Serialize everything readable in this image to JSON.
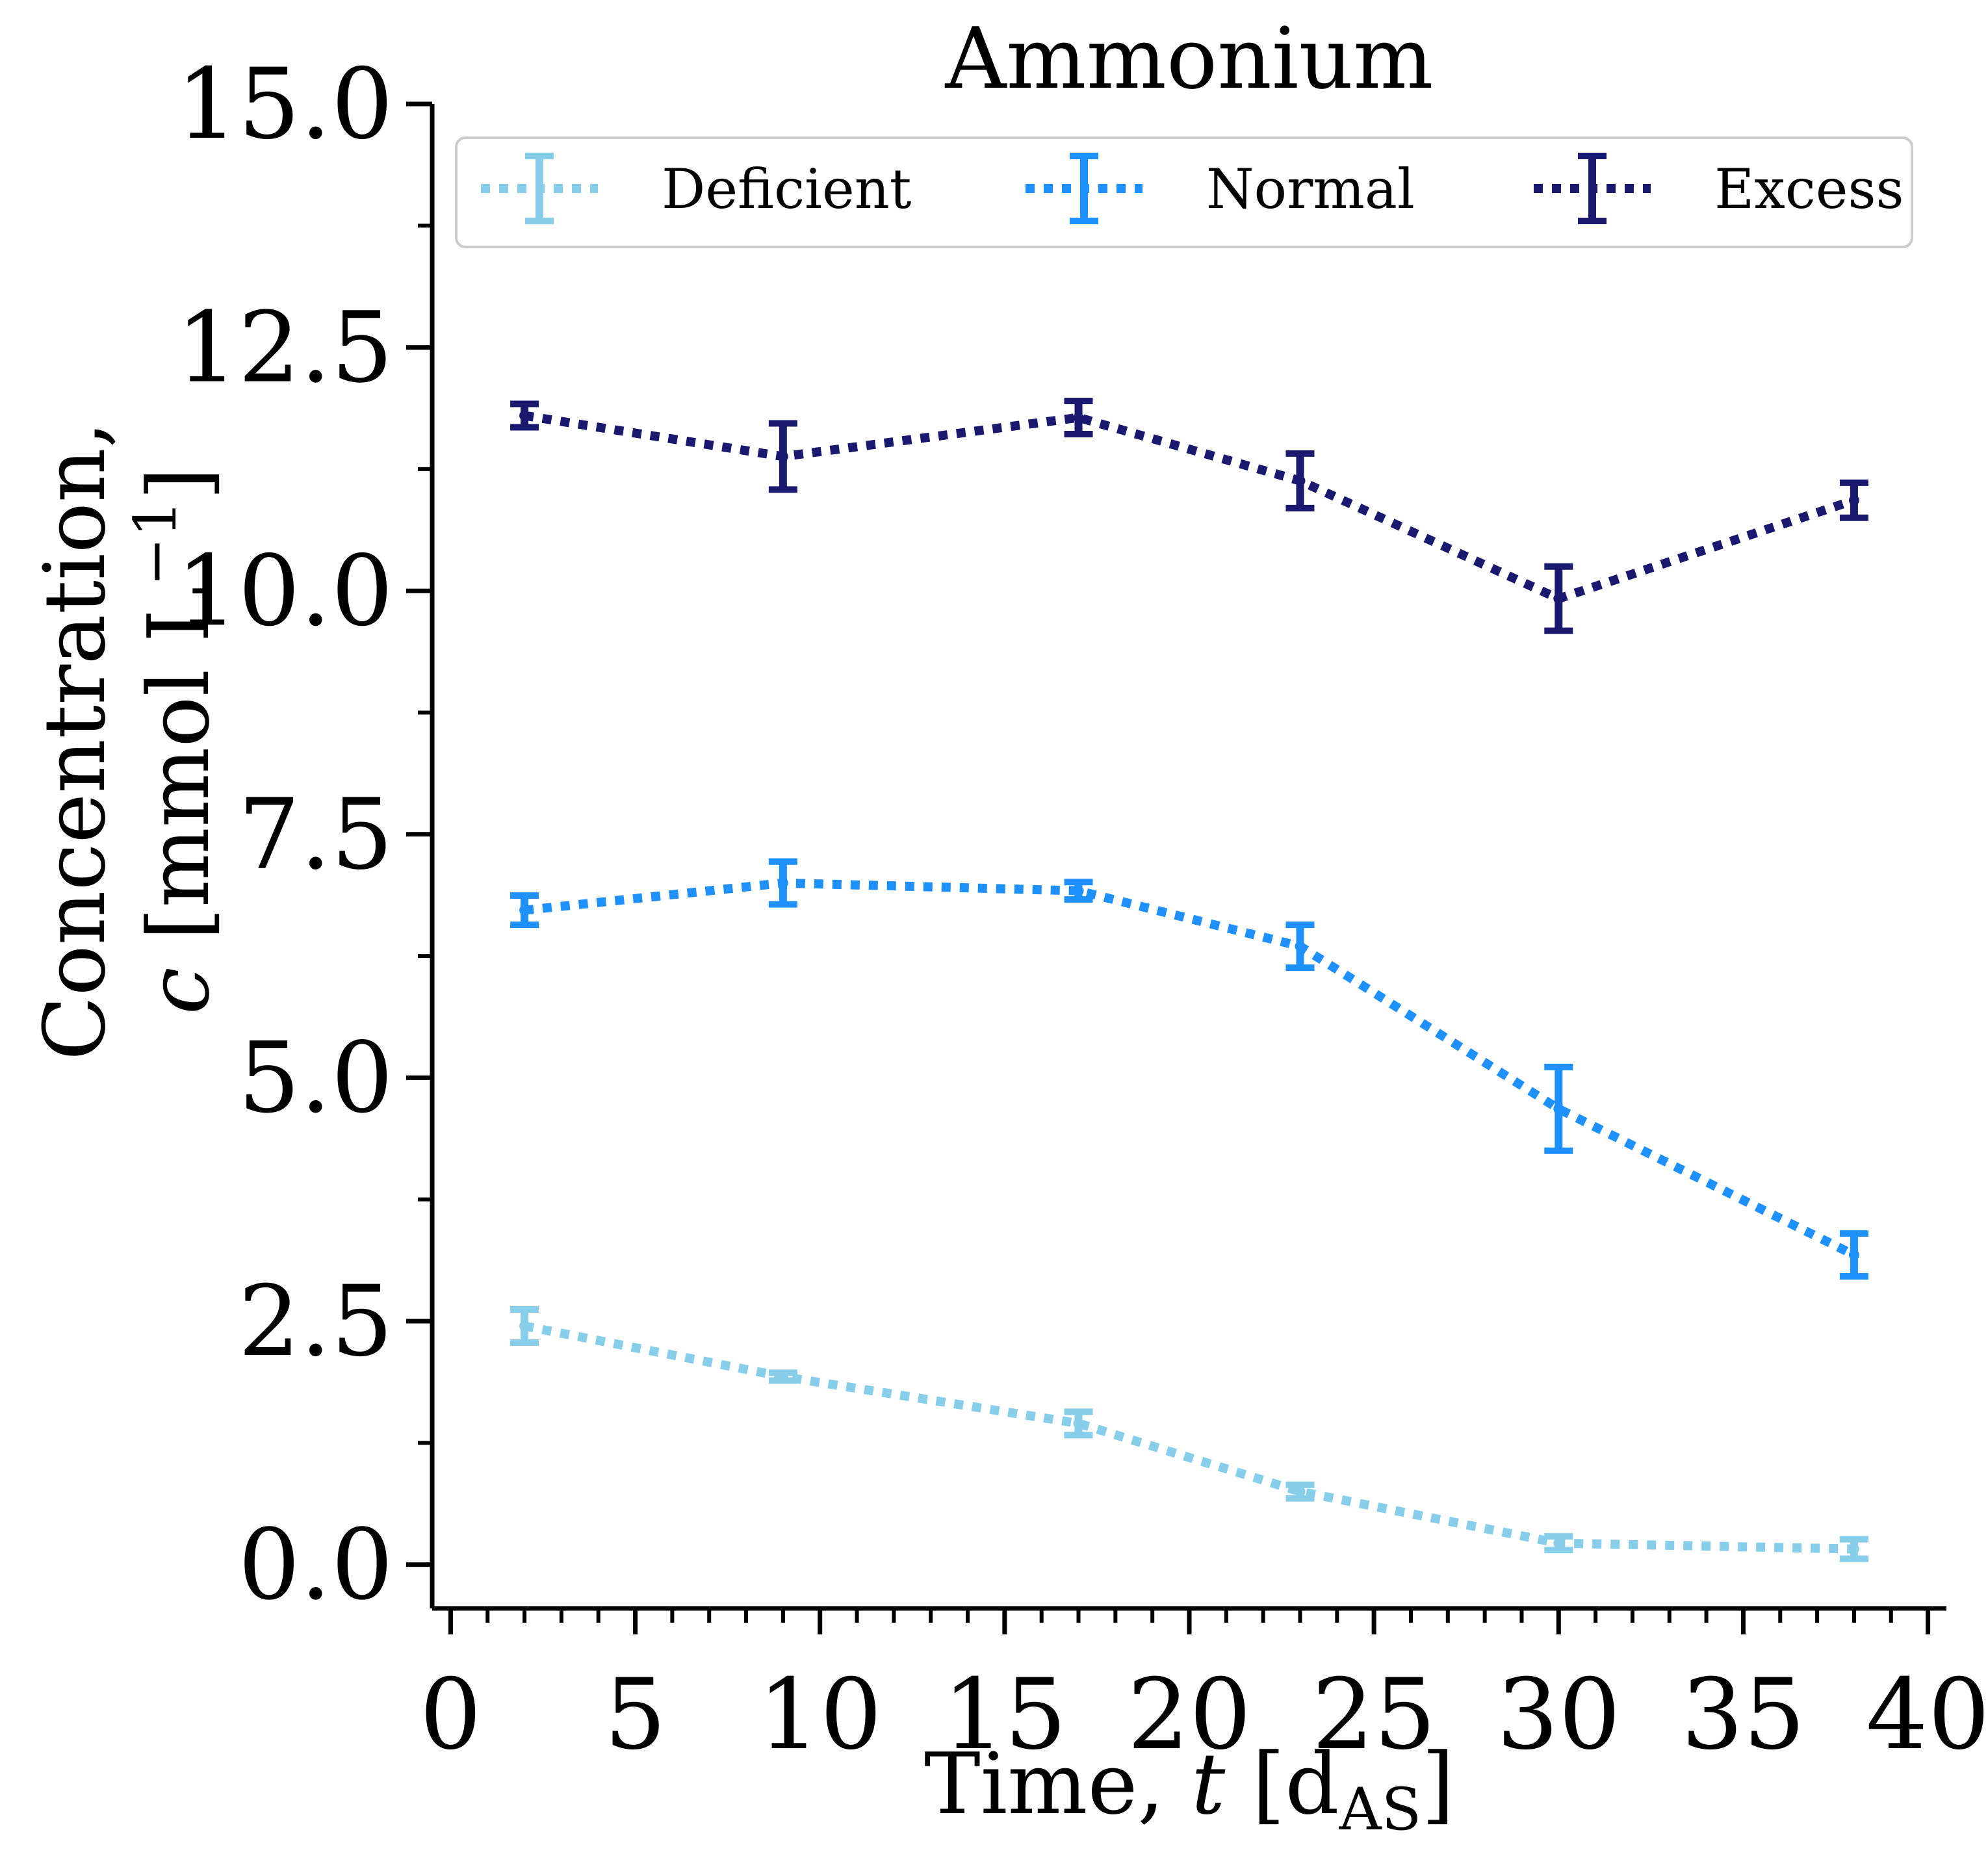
{
  "chart_data": {
    "type": "line",
    "title": "Ammonium",
    "xlabel": {
      "prefix": "Time, ",
      "var": "t",
      "open": " [d",
      "sub": "AS",
      "close": "]"
    },
    "ylabel": {
      "line1": "Concentration,",
      "var": "c",
      "open": " [mmol L",
      "sup": "−1",
      "close": "]"
    },
    "xlim": [
      -0.5,
      40.5
    ],
    "ylim": [
      -0.45,
      15.0
    ],
    "xticks": [
      0,
      5,
      10,
      15,
      20,
      25,
      30,
      35,
      40
    ],
    "xtick_labels": [
      "0",
      "5",
      "10",
      "15",
      "20",
      "25",
      "30",
      "35",
      "40"
    ],
    "x_minor_step": 1,
    "yticks": [
      0.0,
      2.5,
      5.0,
      7.5,
      10.0,
      12.5,
      15.0
    ],
    "ytick_labels": [
      "0.0",
      "2.5",
      "5.0",
      "7.5",
      "10.0",
      "12.5",
      "15.0"
    ],
    "y_minor_step": 1.25,
    "grid": false,
    "legend_position": "top",
    "x": [
      2,
      9,
      17,
      23,
      30,
      38
    ],
    "series": [
      {
        "name": "Deficient",
        "color": "#87ceeb",
        "values": [
          2.45,
          1.93,
          1.45,
          0.75,
          0.22,
          0.16
        ],
        "errors": [
          0.17,
          0.04,
          0.12,
          0.07,
          0.07,
          0.1
        ]
      },
      {
        "name": "Normal",
        "color": "#1e90ff",
        "values": [
          6.72,
          7.0,
          6.92,
          6.35,
          4.68,
          3.18
        ],
        "errors": [
          0.15,
          0.22,
          0.09,
          0.22,
          0.43,
          0.22
        ]
      },
      {
        "name": "Excess",
        "color": "#191970",
        "values": [
          11.8,
          11.38,
          11.78,
          11.13,
          9.92,
          10.93
        ],
        "errors": [
          0.12,
          0.34,
          0.17,
          0.28,
          0.33,
          0.18
        ]
      }
    ]
  }
}
